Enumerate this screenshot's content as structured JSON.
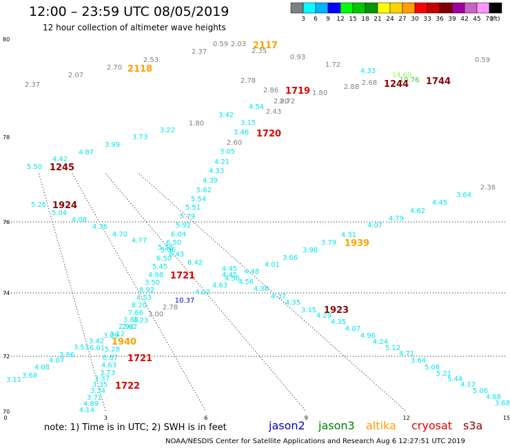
{
  "header": {
    "title": "12:00 – 23:59 UTC 08/05/2019",
    "subtitle": "12 hour collection of altimeter wave heights"
  },
  "colorbar": {
    "ticks": [
      "3",
      "6",
      "9",
      "12",
      "15",
      "18",
      "21",
      "24",
      "27",
      "30",
      "33",
      "36",
      "39",
      "42",
      "45",
      "70"
    ],
    "unit": "(ft)",
    "colors": [
      "#808080",
      "#00ffff",
      "#00b4ff",
      "#0000ff",
      "#00ff00",
      "#00c800",
      "#009600",
      "#ffff00",
      "#ffd200",
      "#ffa000",
      "#ff0000",
      "#c80000",
      "#800000",
      "#a000a0",
      "#c864c8",
      "#ff96ff",
      "#000000"
    ]
  },
  "note": "note:  1) Time is in UTC;  2) SWH is in feet",
  "satellites": [
    {
      "name": "jason2",
      "color": "#0000c8"
    },
    {
      "name": "jason3",
      "color": "#008000"
    },
    {
      "name": "altika",
      "color": "#ffa000"
    },
    {
      "name": "cryosat",
      "color": "#e00000"
    },
    {
      "name": "s3a",
      "color": "#900000"
    }
  ],
  "footer": "NOAA/NESDIS Center for Satellite Applications and Research     Aug  6 12:27:51 UTC 2019",
  "chart_data": {
    "type": "scatter",
    "x_ticks": [
      "0",
      "3",
      "6",
      "9",
      "12",
      "15"
    ],
    "y_ticks": [
      "70",
      "72",
      "74",
      "76",
      "78",
      "80"
    ],
    "gridlines_y": [
      72,
      74,
      76
    ],
    "gridlines_x": [
      3,
      6,
      9,
      12
    ],
    "xlim": [
      0,
      15
    ],
    "ylim": [
      70,
      80
    ],
    "swh_labels": [
      {
        "x": 1.3,
        "y": 79.6,
        "t": "2.53",
        "c": "#808080"
      },
      {
        "x": 1.1,
        "y": 79.4,
        "t": "2.70",
        "c": "#808080"
      },
      {
        "x": 0.6,
        "y": 79.2,
        "t": "2.07",
        "c": "#808080"
      },
      {
        "x": 0.2,
        "y": 78.9,
        "t": "2.37",
        "c": "#808080"
      },
      {
        "x": 1.9,
        "y": 79.9,
        "t": "2.37",
        "c": "#808080"
      },
      {
        "x": 2.6,
        "y": 79.95,
        "t": "0.59",
        "c": "#808080"
      },
      {
        "x": 2.85,
        "y": 79.95,
        "t": "2.03",
        "c": "#808080"
      },
      {
        "x": 3.0,
        "y": 79.9,
        "t": "2.35",
        "c": "#808080"
      },
      {
        "x": 3.5,
        "y": 79.6,
        "t": "0.93",
        "c": "#808080"
      },
      {
        "x": 4.4,
        "y": 79.3,
        "t": "1.72",
        "c": "#808080"
      },
      {
        "x": 5.9,
        "y": 79.5,
        "t": "0.59",
        "c": "#808080"
      },
      {
        "x": 2.75,
        "y": 78.9,
        "t": "2.86",
        "c": "#808080"
      },
      {
        "x": 3.6,
        "y": 78.85,
        "t": "1.80",
        "c": "#808080"
      },
      {
        "x": 4.35,
        "y": 78.95,
        "t": "2.88",
        "c": "#808080"
      },
      {
        "x": 4.7,
        "y": 79.0,
        "t": "2.68",
        "c": "#808080"
      },
      {
        "x": 2.9,
        "y": 78.8,
        "t": "2.80",
        "c": "#808080"
      },
      {
        "x": 3.2,
        "y": 78.75,
        "t": "2.72",
        "c": "#808080"
      },
      {
        "x": 2.7,
        "y": 78.65,
        "t": "2.43",
        "c": "#808080"
      },
      {
        "x": 2.1,
        "y": 78.3,
        "t": "1.80",
        "c": "#808080"
      },
      {
        "x": 2.45,
        "y": 77.95,
        "t": "2.60",
        "c": "#808080"
      },
      {
        "x": 3.0,
        "y": 78.5,
        "t": "2.78",
        "c": "#808080"
      },
      {
        "x": 4.7,
        "y": 79.3,
        "t": "4.33",
        "c": "#00e6e6"
      },
      {
        "x": 2.75,
        "y": 78.7,
        "t": "4.54",
        "c": "#00e6e6"
      },
      {
        "x": 2.4,
        "y": 78.55,
        "t": "3.42",
        "c": "#00e6e6"
      },
      {
        "x": 2.65,
        "y": 78.4,
        "t": "3.15",
        "c": "#00e6e6"
      },
      {
        "x": 2.5,
        "y": 78.2,
        "t": "3.46",
        "c": "#00e6e6"
      },
      {
        "x": 1.8,
        "y": 78.25,
        "t": "3.22",
        "c": "#00e6e6"
      },
      {
        "x": 1.5,
        "y": 78.1,
        "t": "3.73",
        "c": "#00e6e6"
      },
      {
        "x": 1.2,
        "y": 78.0,
        "t": "3.99",
        "c": "#00e6e6"
      },
      {
        "x": 0.9,
        "y": 77.9,
        "t": "4.87",
        "c": "#00e6e6"
      },
      {
        "x": 0.6,
        "y": 77.7,
        "t": "4.42",
        "c": "#00e6e6"
      },
      {
        "x": 0.3,
        "y": 77.6,
        "t": "5.50",
        "c": "#00e6e6"
      },
      {
        "x": 2.35,
        "y": 77.8,
        "t": "3.05",
        "c": "#00e6e6"
      },
      {
        "x": 2.3,
        "y": 77.65,
        "t": "4.21",
        "c": "#00e6e6"
      },
      {
        "x": 2.25,
        "y": 77.5,
        "t": "4.33",
        "c": "#00e6e6"
      },
      {
        "x": 2.2,
        "y": 77.35,
        "t": "4.39",
        "c": "#00e6e6"
      },
      {
        "x": 2.15,
        "y": 77.2,
        "t": "5.62",
        "c": "#00e6e6"
      },
      {
        "x": 2.1,
        "y": 77.05,
        "t": "5.54",
        "c": "#00e6e6"
      },
      {
        "x": 2.05,
        "y": 76.9,
        "t": "5.51",
        "c": "#00e6e6"
      },
      {
        "x": 2.0,
        "y": 76.75,
        "t": "5.79",
        "c": "#00e6e6"
      },
      {
        "x": 1.95,
        "y": 76.6,
        "t": "5.92",
        "c": "#00e6e6"
      },
      {
        "x": 1.9,
        "y": 76.45,
        "t": "6.04",
        "c": "#00e6e6"
      },
      {
        "x": 1.85,
        "y": 76.3,
        "t": "6.50",
        "c": "#00e6e6"
      },
      {
        "x": 1.8,
        "y": 76.2,
        "t": "5.28",
        "c": "#00e6e6"
      },
      {
        "x": 1.85,
        "y": 76.1,
        "t": "5.06",
        "c": "#00e6e6"
      },
      {
        "x": 1.9,
        "y": 76.0,
        "t": "6.43",
        "c": "#00e6e6"
      },
      {
        "x": 1.8,
        "y": 75.95,
        "t": "6.50",
        "c": "#00e6e6"
      },
      {
        "x": 2.1,
        "y": 75.9,
        "t": "6.42",
        "c": "#00e6e6"
      },
      {
        "x": 1.75,
        "y": 75.8,
        "t": "5.45",
        "c": "#00e6e6"
      },
      {
        "x": 1.7,
        "y": 75.65,
        "t": "4.98",
        "c": "#00e6e6"
      },
      {
        "x": 1.6,
        "y": 75.5,
        "t": "3.50",
        "c": "#00e6e6"
      },
      {
        "x": 1.5,
        "y": 75.35,
        "t": "8.92",
        "c": "#00e6e6"
      },
      {
        "x": 1.45,
        "y": 75.2,
        "t": "4.53",
        "c": "#00e6e6"
      },
      {
        "x": 1.4,
        "y": 75.05,
        "t": "8.20",
        "c": "#00e6e6"
      },
      {
        "x": 1.35,
        "y": 74.9,
        "t": "7.66",
        "c": "#00e6e6"
      },
      {
        "x": 1.3,
        "y": 74.8,
        "t": "3.85",
        "c": "#00e6e6"
      },
      {
        "x": 1.4,
        "y": 74.75,
        "t": "4.23",
        "c": "#00e6e6"
      },
      {
        "x": 1.3,
        "y": 74.65,
        "t": "2.92",
        "c": "#00e6e6"
      },
      {
        "x": 1.35,
        "y": 74.65,
        "t": "2.62",
        "c": "#00e6e6"
      },
      {
        "x": 1.1,
        "y": 74.5,
        "t": "3.09",
        "c": "#00e6e6"
      },
      {
        "x": 1.25,
        "y": 74.5,
        "t": "3.12",
        "c": "#00e6e6"
      },
      {
        "x": 0.95,
        "y": 74.35,
        "t": "3.42",
        "c": "#00e6e6"
      },
      {
        "x": 1.15,
        "y": 74.3,
        "t": "5.28",
        "c": "#00e6e6"
      },
      {
        "x": 1.15,
        "y": 74.2,
        "t": "6.01",
        "c": "#00e6e6"
      },
      {
        "x": 0.75,
        "y": 74.2,
        "t": "3.53",
        "c": "#00e6e6"
      },
      {
        "x": 0.45,
        "y": 74.0,
        "t": "3.86",
        "c": "#00e6e6"
      },
      {
        "x": 0.2,
        "y": 73.95,
        "t": "4.07",
        "c": "#00e6e6"
      },
      {
        "x": 0.05,
        "y": 73.8,
        "t": "4.08",
        "c": "#00e6e6"
      },
      {
        "x": -0.05,
        "y": 73.65,
        "t": "3.68",
        "c": "#00e6e6"
      },
      {
        "x": -0.15,
        "y": 73.45,
        "t": "3.11",
        "c": "#00e6e6"
      },
      {
        "x": 1.05,
        "y": 74.05,
        "t": "6.87",
        "c": "#00e6e6"
      },
      {
        "x": 1.0,
        "y": 73.9,
        "t": "4.63",
        "c": "#00e6e6"
      },
      {
        "x": 0.95,
        "y": 73.75,
        "t": "3.73",
        "c": "#00e6e6"
      },
      {
        "x": 0.9,
        "y": 73.6,
        "t": "3.37",
        "c": "#00e6e6"
      },
      {
        "x": 0.85,
        "y": 73.45,
        "t": "3.35",
        "c": "#00e6e6"
      },
      {
        "x": 0.8,
        "y": 73.3,
        "t": "3.34",
        "c": "#00e6e6"
      },
      {
        "x": 0.75,
        "y": 73.15,
        "t": "3.71",
        "c": "#00e6e6"
      },
      {
        "x": 0.7,
        "y": 73.0,
        "t": "4.89",
        "c": "#00e6e6"
      },
      {
        "x": 0.65,
        "y": 72.85,
        "t": "4.14",
        "c": "#00e6e6"
      },
      {
        "x": 0.2,
        "y": 76.45,
        "t": "5.26",
        "c": "#00e6e6"
      },
      {
        "x": 0.35,
        "y": 76.35,
        "t": "5.04",
        "c": "#00e6e6"
      },
      {
        "x": 0.55,
        "y": 76.25,
        "t": "4.08",
        "c": "#00e6e6"
      },
      {
        "x": 0.75,
        "y": 76.15,
        "t": "4.36",
        "c": "#00e6e6"
      },
      {
        "x": 1.0,
        "y": 76.0,
        "t": "4.70",
        "c": "#00e6e6"
      },
      {
        "x": 1.2,
        "y": 75.9,
        "t": "4.77",
        "c": "#00e6e6"
      },
      {
        "x": 3.5,
        "y": 76.6,
        "t": "4.07",
        "c": "#00e6e6"
      },
      {
        "x": 3.95,
        "y": 76.75,
        "t": "4.79",
        "c": "#00e6e6"
      },
      {
        "x": 4.2,
        "y": 76.85,
        "t": "4.62",
        "c": "#00e6e6"
      },
      {
        "x": 4.45,
        "y": 77.0,
        "t": "4.45",
        "c": "#00e6e6"
      },
      {
        "x": 4.75,
        "y": 77.1,
        "t": "3.64",
        "c": "#00e6e6"
      },
      {
        "x": 3.15,
        "y": 76.35,
        "t": "4.31",
        "c": "#00e6e6"
      },
      {
        "x": 3.0,
        "y": 76.25,
        "t": "3.79",
        "c": "#00e6e6"
      },
      {
        "x": 2.85,
        "y": 76.15,
        "t": "3.98",
        "c": "#00e6e6"
      },
      {
        "x": 2.7,
        "y": 76.05,
        "t": "3.66",
        "c": "#00e6e6"
      },
      {
        "x": 2.55,
        "y": 75.95,
        "t": "4.01",
        "c": "#00e6e6"
      },
      {
        "x": 2.4,
        "y": 75.85,
        "t": "4.48",
        "c": "#00e6e6"
      },
      {
        "x": 2.25,
        "y": 75.75,
        "t": "4.56",
        "c": "#00e6e6"
      },
      {
        "x": 2.2,
        "y": 75.8,
        "t": "4.45",
        "c": "#00e6e6"
      },
      {
        "x": 2.3,
        "y": 75.7,
        "t": "4.56",
        "c": "#00e6e6"
      },
      {
        "x": 2.1,
        "y": 75.6,
        "t": "4.63",
        "c": "#00e6e6"
      },
      {
        "x": 2.0,
        "y": 75.5,
        "t": "4.02",
        "c": "#00e6e6"
      },
      {
        "x": 2.05,
        "y": 75.75,
        "t": "4.45",
        "c": "#00e6e6"
      },
      {
        "x": 2.5,
        "y": 75.55,
        "t": "4.38",
        "c": "#00e6e6"
      },
      {
        "x": 2.75,
        "y": 75.45,
        "t": "4.37",
        "c": "#00e6e6"
      },
      {
        "x": 2.95,
        "y": 75.35,
        "t": "4.35",
        "c": "#00e6e6"
      },
      {
        "x": 3.1,
        "y": 75.2,
        "t": "3.15",
        "c": "#00e6e6"
      },
      {
        "x": 3.25,
        "y": 75.1,
        "t": "4.29",
        "c": "#00e6e6"
      },
      {
        "x": 3.4,
        "y": 75.0,
        "t": "4.35",
        "c": "#00e6e6"
      },
      {
        "x": 3.55,
        "y": 74.85,
        "t": "4.07",
        "c": "#00e6e6"
      },
      {
        "x": 3.7,
        "y": 74.75,
        "t": "4.96",
        "c": "#00e6e6"
      },
      {
        "x": 3.85,
        "y": 74.6,
        "t": "4.24",
        "c": "#00e6e6"
      },
      {
        "x": 4.0,
        "y": 74.5,
        "t": "5.12",
        "c": "#00e6e6"
      },
      {
        "x": 4.15,
        "y": 74.4,
        "t": "4.71",
        "c": "#00e6e6"
      },
      {
        "x": 4.3,
        "y": 74.25,
        "t": "3.64",
        "c": "#00e6e6"
      },
      {
        "x": 4.5,
        "y": 74.15,
        "t": "5.08",
        "c": "#00e6e6"
      },
      {
        "x": 4.65,
        "y": 74.05,
        "t": "5.21",
        "c": "#00e6e6"
      },
      {
        "x": 4.8,
        "y": 73.9,
        "t": "5.44",
        "c": "#00e6e6"
      },
      {
        "x": 4.95,
        "y": 73.8,
        "t": "4.12",
        "c": "#00e6e6"
      },
      {
        "x": 5.1,
        "y": 73.7,
        "t": "5.06",
        "c": "#00e6e6"
      },
      {
        "x": 5.3,
        "y": 73.6,
        "t": "4.88",
        "c": "#00e6e6"
      },
      {
        "x": 5.5,
        "y": 73.5,
        "t": "3.68",
        "c": "#00e6e6"
      },
      {
        "x": 4.75,
        "y": 79.2,
        "t": "14.69",
        "c": "#7cff5a"
      },
      {
        "x": 4.85,
        "y": 79.05,
        "t": "10.76",
        "c": "#40c040"
      },
      {
        "x": 1.75,
        "y": 75.25,
        "t": "10.37",
        "c": "#0000c8"
      },
      {
        "x": 1.45,
        "y": 75.1,
        "t": "3.00",
        "c": "#808080"
      },
      {
        "x": 1.7,
        "y": 75.0,
        "t": "2.78",
        "c": "#808080"
      },
      {
        "x": 5.35,
        "y": 77.1,
        "t": "2.38",
        "c": "#808080"
      }
    ],
    "time_labels": [
      {
        "t": "2117",
        "c": "#ffa000"
      },
      {
        "t": "2118",
        "c": "#ffa000"
      },
      {
        "t": "1719",
        "c": "#e00000"
      },
      {
        "t": "1244",
        "c": "#900000"
      },
      {
        "t": "1744",
        "c": "#900000"
      },
      {
        "t": "1720",
        "c": "#e00000"
      },
      {
        "t": "1245",
        "c": "#900000"
      },
      {
        "t": "1924",
        "c": "#900000"
      },
      {
        "t": "1939",
        "c": "#ffa000"
      },
      {
        "t": "1721",
        "c": "#e00000"
      },
      {
        "t": "1923",
        "c": "#900000"
      },
      {
        "t": "1940",
        "c": "#ffa000"
      },
      {
        "t": "1721",
        "c": "#e00000"
      },
      {
        "t": "1722",
        "c": "#e00000"
      }
    ]
  }
}
